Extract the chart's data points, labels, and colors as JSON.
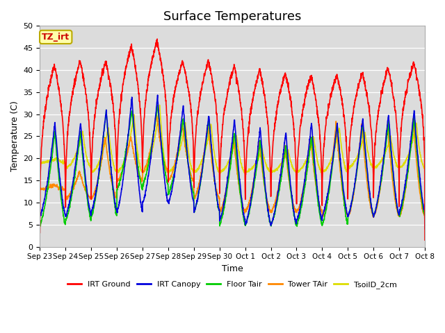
{
  "title": "Surface Temperatures",
  "xlabel": "Time",
  "ylabel": "Temperature (C)",
  "ylim": [
    0,
    50
  ],
  "annotation_text": "TZ_irt",
  "annotation_bg": "#FFFFAA",
  "annotation_border": "#BBAA00",
  "bg_color": "#DCDCDC",
  "series": {
    "IRT Ground": {
      "color": "#FF0000",
      "lw": 1.2
    },
    "IRT Canopy": {
      "color": "#0000DD",
      "lw": 1.2
    },
    "Floor Tair": {
      "color": "#00CC00",
      "lw": 1.2
    },
    "Tower TAir": {
      "color": "#FF8800",
      "lw": 1.2
    },
    "TsoilD_2cm": {
      "color": "#DDDD00",
      "lw": 1.2
    }
  },
  "x_ticks": [
    "Sep 23",
    "Sep 24",
    "Sep 25",
    "Sep 26",
    "Sep 27",
    "Sep 28",
    "Sep 29",
    "Sep 30",
    "Oct 1",
    "Oct 2",
    "Oct 3",
    "Oct 4",
    "Oct 5",
    "Oct 6",
    "Oct 7",
    "Oct 8"
  ],
  "y_ticks": [
    0,
    5,
    10,
    15,
    20,
    25,
    30,
    35,
    40,
    45,
    50
  ],
  "n_days": 15,
  "pts_per_day": 144
}
